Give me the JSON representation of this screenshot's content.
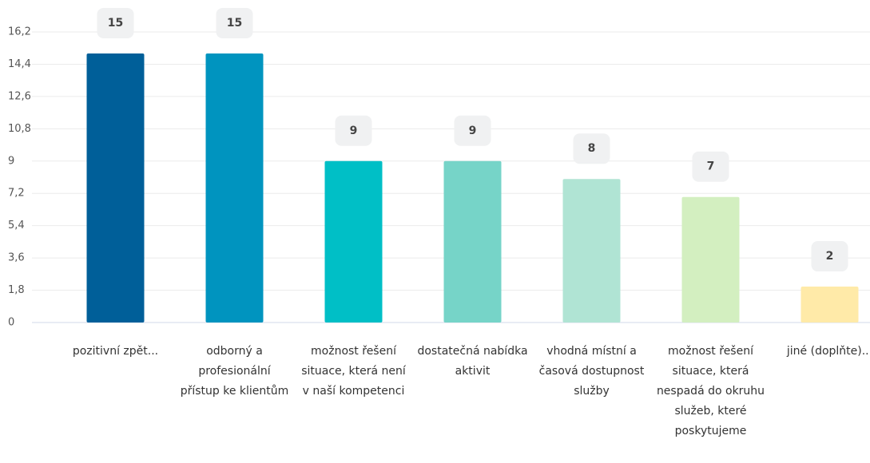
{
  "chart_data": {
    "type": "bar",
    "categories": [
      "pozitivní zpět...",
      "odborný a profesionální přístup ke klientům",
      "možnost řešení situace, která není v naší kompetenci",
      "dostatečná nabídka aktivit",
      "vhodná místní a časová dostupnost služby",
      "možnost řešení situace, která nespadá do okruhu služeb, které poskytujeme",
      "jiné (doplňte)..."
    ],
    "values": [
      15,
      15,
      9,
      9,
      8,
      7,
      2
    ],
    "colors": [
      "#005f99",
      "#0094bf",
      "#00bfc6",
      "#76d4c8",
      "#b0e4d4",
      "#d3efc0",
      "#ffeaa8"
    ],
    "ylim": [
      0,
      16.2
    ],
    "yticks": [
      0,
      {
        "value": 1.8,
        "label": "1,8"
      },
      {
        "value": 3.6,
        "label": "3,6"
      },
      {
        "value": 5.4,
        "label": "5,4"
      },
      {
        "value": 7.2,
        "label": "7,2"
      },
      9,
      {
        "value": 10.8,
        "label": "10,8"
      },
      {
        "value": 12.6,
        "label": "12,6"
      },
      {
        "value": 14.4,
        "label": "14,4"
      },
      {
        "value": 16.2,
        "label": "16,2"
      }
    ],
    "grid": true
  }
}
